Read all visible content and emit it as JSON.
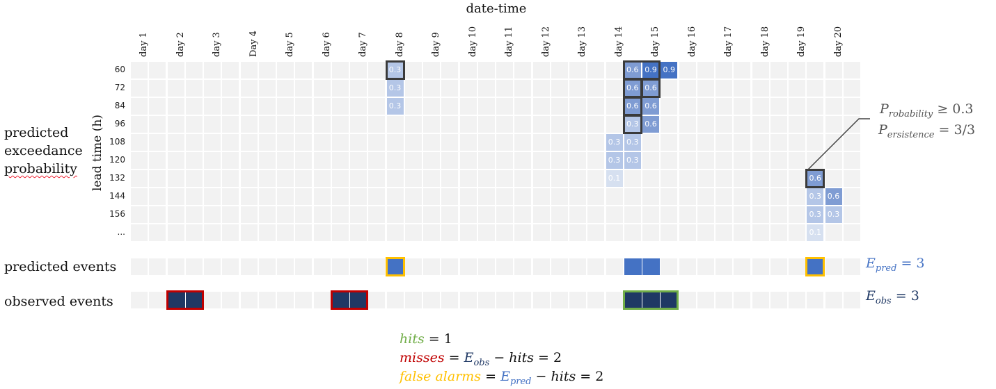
{
  "title": "date-time",
  "days": [
    "day 1",
    "day 2",
    "day 3",
    "Day 4",
    "day 5",
    "day 6",
    "day 7",
    "day 8",
    "day 9",
    "day 10",
    "day 11",
    "day 12",
    "day 13",
    "day 14",
    "day 15",
    "day 16",
    "day 17",
    "day 18",
    "day 19",
    "day 20"
  ],
  "lead_times": [
    "60",
    "72",
    "84",
    "96",
    "108",
    "120",
    "132",
    "144",
    "156",
    "..."
  ],
  "y_axis_label": "lead time (h)",
  "row_heads": {
    "probability_lines": [
      "predicted",
      "exceedance",
      "probability"
    ],
    "predicted": "predicted events",
    "observed": "observed events"
  },
  "colors": {
    "grid": "#f2f2f2",
    "predicted": "#4472c4",
    "observed": "#1f3864",
    "hit": "#70ad47",
    "miss": "#c00000",
    "false_alarm": "#ffc000"
  },
  "probabilities": [
    {
      "row": 0,
      "col": 14,
      "p": "0.3"
    },
    {
      "row": 1,
      "col": 14,
      "p": "0.3"
    },
    {
      "row": 2,
      "col": 14,
      "p": "0.3"
    },
    {
      "row": 0,
      "col": 27,
      "p": "0.6"
    },
    {
      "row": 0,
      "col": 28,
      "p": "0.9"
    },
    {
      "row": 0,
      "col": 29,
      "p": "0.9"
    },
    {
      "row": 1,
      "col": 27,
      "p": "0.6"
    },
    {
      "row": 1,
      "col": 28,
      "p": "0.6"
    },
    {
      "row": 2,
      "col": 27,
      "p": "0.6"
    },
    {
      "row": 2,
      "col": 28,
      "p": "0.6"
    },
    {
      "row": 3,
      "col": 27,
      "p": "0.3"
    },
    {
      "row": 3,
      "col": 28,
      "p": "0.6"
    },
    {
      "row": 4,
      "col": 26,
      "p": "0.3"
    },
    {
      "row": 4,
      "col": 27,
      "p": "0.3"
    },
    {
      "row": 5,
      "col": 26,
      "p": "0.3"
    },
    {
      "row": 5,
      "col": 27,
      "p": "0.3"
    },
    {
      "row": 6,
      "col": 26,
      "p": "0.1"
    },
    {
      "row": 6,
      "col": 37,
      "p": "0.6"
    },
    {
      "row": 7,
      "col": 37,
      "p": "0.3"
    },
    {
      "row": 7,
      "col": 38,
      "p": "0.6"
    },
    {
      "row": 8,
      "col": 37,
      "p": "0.3"
    },
    {
      "row": 8,
      "col": 38,
      "p": "0.3"
    },
    {
      "row": 9,
      "col": 37,
      "p": "0.1"
    }
  ],
  "predicted_event_cols": [
    14,
    27,
    28,
    37
  ],
  "observed_event_cols": [
    2,
    3,
    11,
    12,
    27,
    28,
    29
  ],
  "annotation": {
    "line1_var": "P",
    "line1_sub": "robability",
    "line1_rest": " ≥ 0.3",
    "line2_var": "P",
    "line2_sub": "ersistence",
    "line2_rest": " = 3/3"
  },
  "e_pred": {
    "var": "E",
    "sub": "pred",
    "rest": " = 3"
  },
  "e_obs": {
    "var": "E",
    "sub": "obs",
    "rest": " = 3"
  },
  "scores": {
    "hits": {
      "label": "hits",
      "rest": " = 1"
    },
    "misses": {
      "label": "misses",
      "eq": " = ",
      "v1": "E",
      "s1": "obs",
      "mid": " − ",
      "v2": "hits",
      "rest": " = 2"
    },
    "false_alarms": {
      "label": "false alarms",
      "eq": " = ",
      "v1": "E",
      "s1": "pred",
      "mid": " − ",
      "v2": "hits",
      "rest": " = 2"
    }
  }
}
